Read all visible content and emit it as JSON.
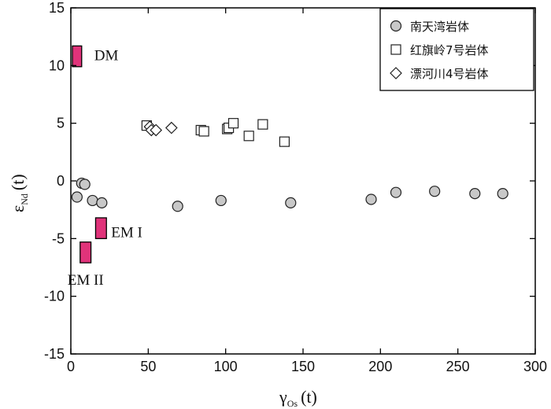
{
  "chart_data": {
    "type": "scatter",
    "xlabel": {
      "symbol": "γ",
      "subscript": "Os",
      "suffix": "(t)"
    },
    "ylabel": {
      "symbol": "ε",
      "subscript": "Nd",
      "suffix": "(t)"
    },
    "xlim": [
      0,
      300
    ],
    "ylim": [
      -15,
      15
    ],
    "xticks": [
      0,
      50,
      100,
      150,
      200,
      250,
      300
    ],
    "yticks": [
      15,
      10,
      5,
      0,
      -5,
      -10,
      -15
    ],
    "grid": false,
    "legend_position": "top-right",
    "series": [
      {
        "name": "南天湾岩体",
        "marker": "circle",
        "fill": "#c8c8c8",
        "points": [
          [
            4,
            -1.4
          ],
          [
            7,
            -0.2
          ],
          [
            9,
            -0.3
          ],
          [
            14,
            -1.7
          ],
          [
            20,
            -1.9
          ],
          [
            69,
            -2.2
          ],
          [
            97,
            -1.7
          ],
          [
            142,
            -1.9
          ],
          [
            194,
            -1.6
          ],
          [
            210,
            -1.0
          ],
          [
            235,
            -0.9
          ],
          [
            261,
            -1.1
          ],
          [
            279,
            -1.1
          ]
        ]
      },
      {
        "name": "红旗岭7号岩体",
        "marker": "square",
        "fill": "#ffffff",
        "points": [
          [
            49,
            4.8
          ],
          [
            84,
            4.4
          ],
          [
            86,
            4.3
          ],
          [
            101,
            4.5
          ],
          [
            102,
            4.6
          ],
          [
            105,
            5.0
          ],
          [
            115,
            3.9
          ],
          [
            124,
            4.9
          ],
          [
            138,
            3.4
          ]
        ]
      },
      {
        "name": "漂河川4号岩体",
        "marker": "diamond",
        "fill": "#ffffff",
        "points": [
          [
            51,
            4.7
          ],
          [
            52,
            4.4
          ],
          [
            55,
            4.4
          ],
          [
            65,
            4.6
          ]
        ]
      }
    ],
    "regions": [
      {
        "label": "DM",
        "x": [
          1,
          7
        ],
        "y": [
          9.9,
          11.7
        ],
        "color": "#e0337a"
      },
      {
        "label": "EM I",
        "x": [
          16,
          23
        ],
        "y": [
          -5.0,
          -3.2
        ],
        "color": "#e0337a"
      },
      {
        "label": "EM II",
        "x": [
          6,
          13
        ],
        "y": [
          -7.1,
          -5.3
        ],
        "color": "#e0337a"
      }
    ]
  }
}
